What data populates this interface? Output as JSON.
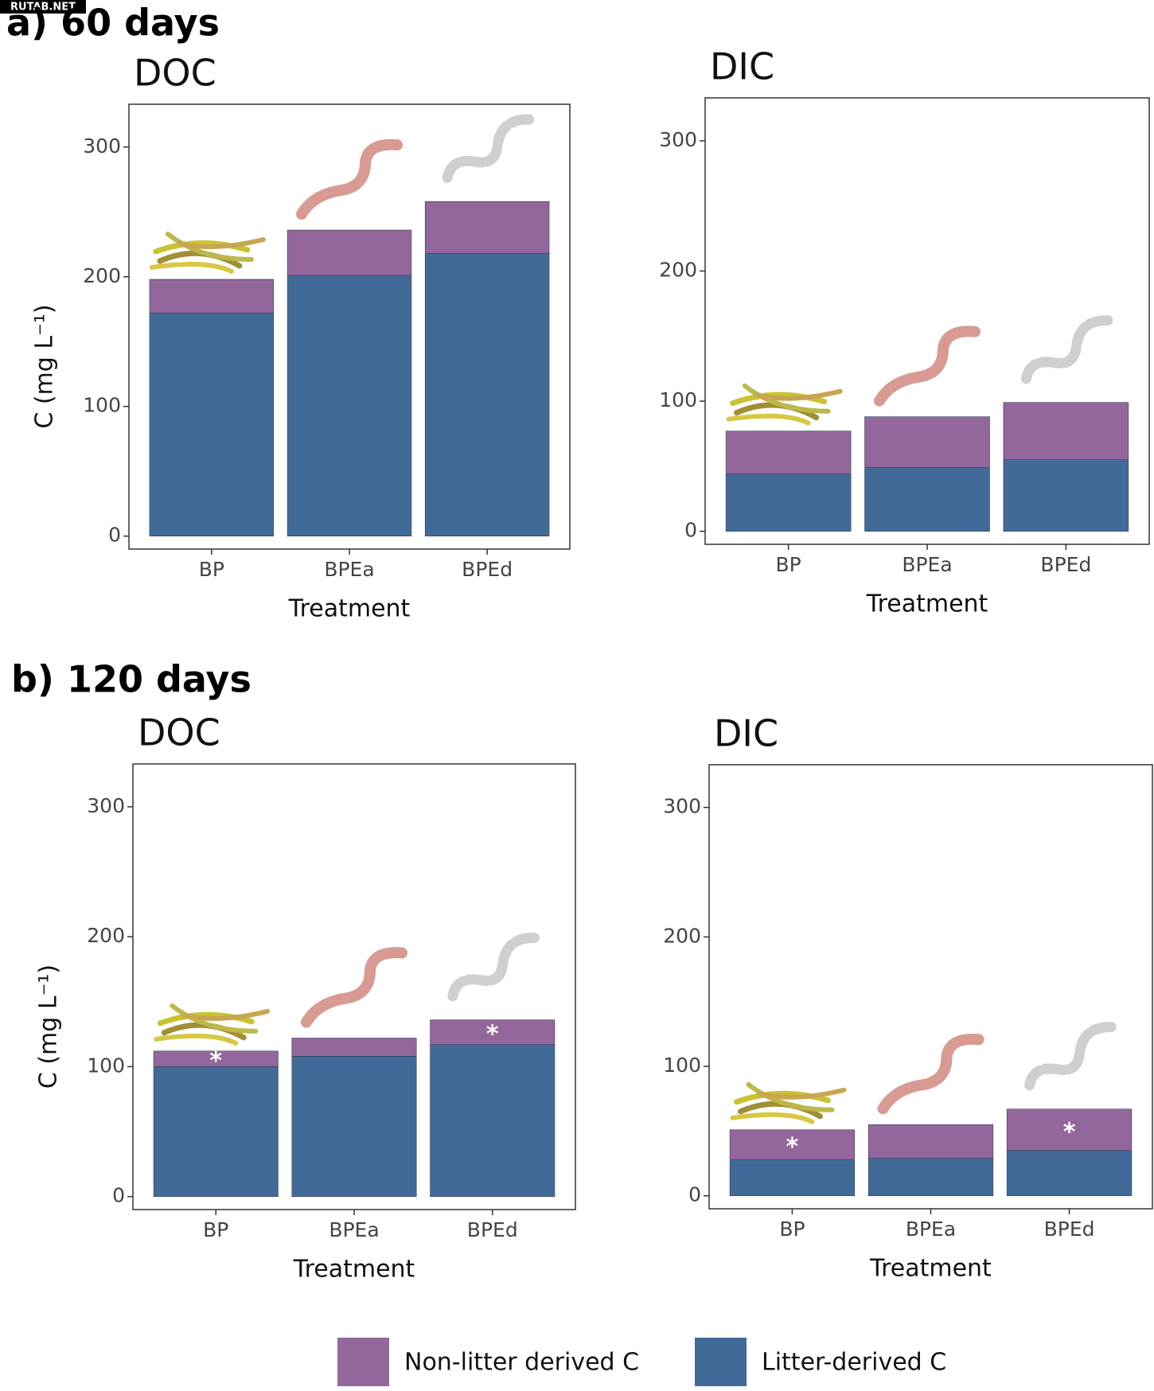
{
  "watermark": "RUTAB.NET",
  "section_labels": [
    "a) 60 days",
    "b) 120 days"
  ],
  "chart_data": [
    {
      "type": "stacked_bar",
      "title": "DOC",
      "xlabel": "Treatment",
      "ylabel": "C (mg L⁻¹)",
      "categories": [
        "BP",
        "BPEa",
        "BPEd"
      ],
      "ylim": [
        -10,
        333
      ],
      "yticks": [
        0,
        100,
        200,
        300
      ],
      "series": [
        {
          "name": "Litter-derived C",
          "color": "#426a98",
          "values": [
            172,
            201,
            218
          ]
        },
        {
          "name": "Non-litter derived C",
          "color": "#94679c",
          "values": [
            26,
            35,
            40
          ]
        }
      ]
    },
    {
      "type": "stacked_bar",
      "title": "DIC",
      "xlabel": "Treatment",
      "categories": [
        "BP",
        "BPEa",
        "BPEd"
      ],
      "ylim": [
        -10,
        333
      ],
      "yticks": [
        0,
        100,
        200,
        300
      ],
      "series": [
        {
          "name": "Litter-derived C",
          "color": "#426a98",
          "values": [
            44,
            49,
            55
          ]
        },
        {
          "name": "Non-litter derived C",
          "color": "#94679c",
          "values": [
            33,
            39,
            44
          ]
        }
      ]
    },
    {
      "type": "stacked_bar",
      "title": "DOC",
      "xlabel": "Treatment",
      "ylabel": "C (mg L⁻¹)",
      "categories": [
        "BP",
        "BPEa",
        "BPEd"
      ],
      "ylim": [
        -10,
        333
      ],
      "yticks": [
        0,
        100,
        200,
        300
      ],
      "annotations": [
        "*",
        null,
        "*"
      ],
      "series": [
        {
          "name": "Litter-derived C",
          "color": "#426a98",
          "values": [
            100,
            108,
            117
          ]
        },
        {
          "name": "Non-litter derived C",
          "color": "#94679c",
          "values": [
            12,
            14,
            19
          ]
        }
      ]
    },
    {
      "type": "stacked_bar",
      "title": "DIC",
      "xlabel": "Treatment",
      "categories": [
        "BP",
        "BPEa",
        "BPEd"
      ],
      "ylim": [
        -10,
        333
      ],
      "yticks": [
        0,
        100,
        200,
        300
      ],
      "annotations": [
        "*",
        null,
        "*"
      ],
      "series": [
        {
          "name": "Litter-derived C",
          "color": "#426a98",
          "values": [
            28,
            29,
            35
          ]
        },
        {
          "name": "Non-litter derived C",
          "color": "#94679c",
          "values": [
            23,
            26,
            32
          ]
        }
      ]
    }
  ]
}
